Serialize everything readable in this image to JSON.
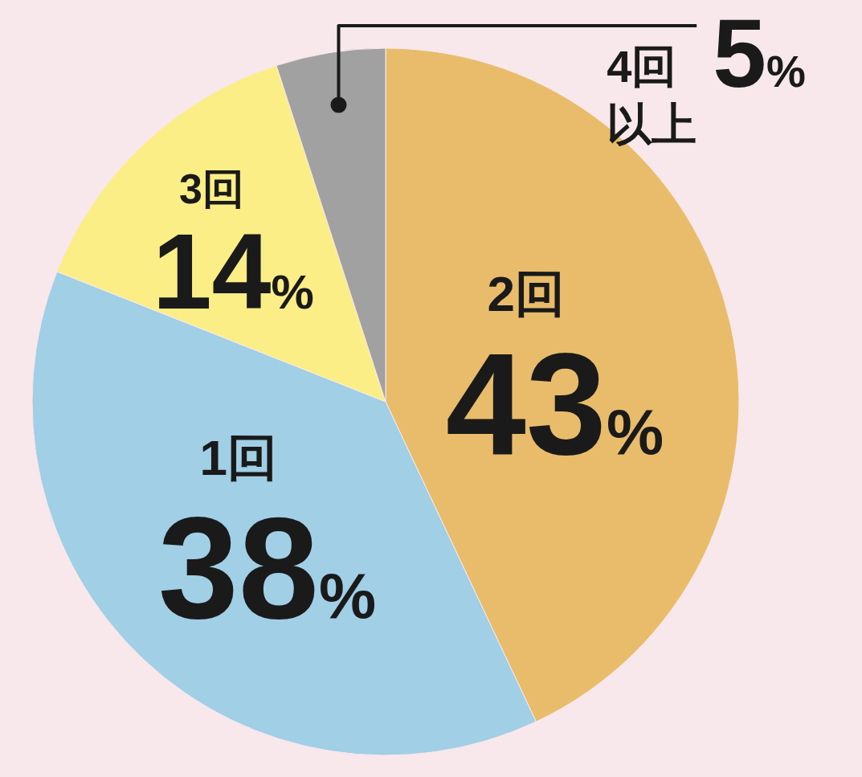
{
  "chart_data": {
    "type": "pie",
    "categories": [
      "2回",
      "1回",
      "3回",
      "4回以上"
    ],
    "values": [
      43,
      38,
      14,
      5
    ],
    "colors": [
      "#e9bc6b",
      "#a0cfe6",
      "#fbee86",
      "#a1a1a1"
    ],
    "value_labels": [
      "43%",
      "38%",
      "14%",
      "5%"
    ]
  }
}
